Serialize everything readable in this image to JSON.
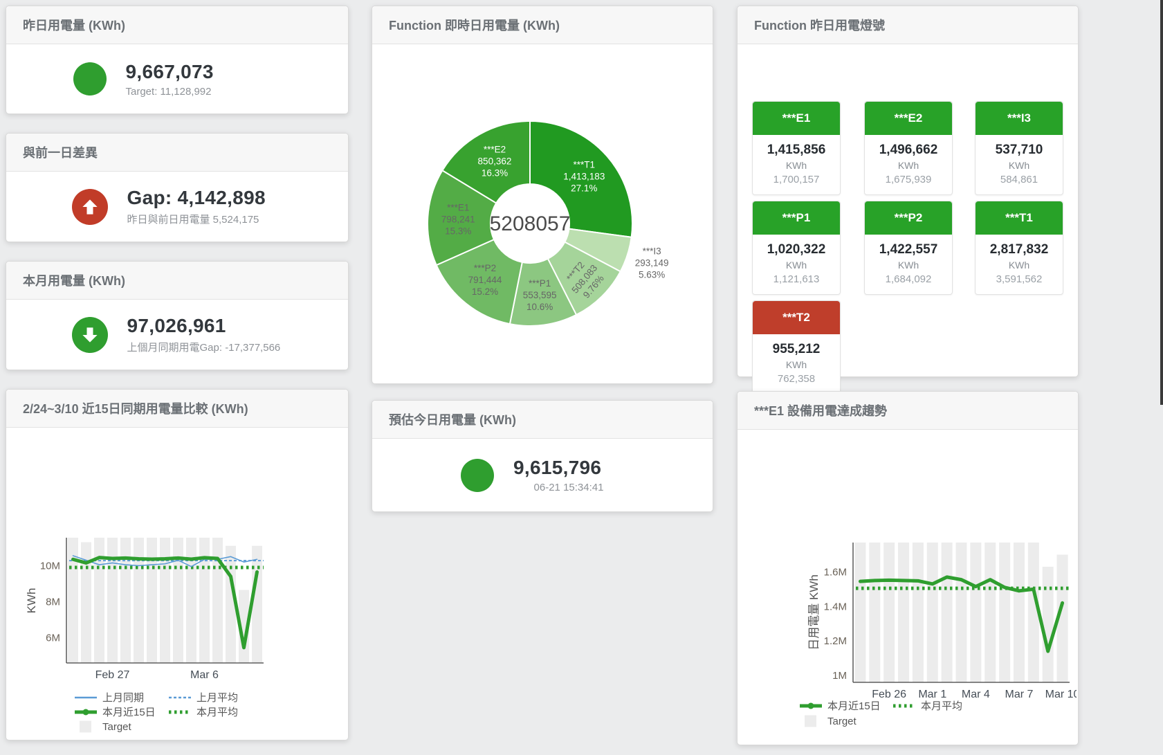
{
  "colors": {
    "green": "#2f9e2f",
    "red": "#c13c28",
    "tile_green": "#28a228",
    "tile_red": "#bf3e2b",
    "blue": "#5b9bd5",
    "target_gray": "#ececec"
  },
  "cards": {
    "yesterday": {
      "title": "昨日用電量 (KWh)",
      "value": "9,667,073",
      "subtitle": "Target: 11,128,992"
    },
    "gap": {
      "title": "與前一日差異",
      "value": "Gap: 4,142,898",
      "subtitle": "昨日與前日用電量 5,524,175"
    },
    "month": {
      "title": "本月用電量 (KWh)",
      "value": "97,026,961",
      "subtitle": "上個月同期用電Gap: -17,377,566"
    },
    "estimate": {
      "title": "預估今日用電量 (KWh)",
      "value": "9,615,796",
      "subtitle": "06-21 15:34:41"
    },
    "donut": {
      "title": "Function 即時日用電量 (KWh)"
    },
    "compare": {
      "title": "2/24~3/10 近15日同期用電量比較 (KWh)"
    },
    "lights": {
      "title": "Function 昨日用電燈號",
      "unit": "KWh",
      "tiles": [
        {
          "name": "***E1",
          "value": "1,415,856",
          "target": "1,700,157",
          "status": "green",
          "status_color": "#28a228"
        },
        {
          "name": "***E2",
          "value": "1,496,662",
          "target": "1,675,939",
          "status": "green",
          "status_color": "#28a228"
        },
        {
          "name": "***I3",
          "value": "537,710",
          "target": "584,861",
          "status": "green",
          "status_color": "#28a228"
        },
        {
          "name": "***P1",
          "value": "1,020,322",
          "target": "1,121,613",
          "status": "green",
          "status_color": "#28a228"
        },
        {
          "name": "***P2",
          "value": "1,422,557",
          "target": "1,684,092",
          "status": "green",
          "status_color": "#28a228"
        },
        {
          "name": "***T1",
          "value": "2,817,832",
          "target": "3,591,562",
          "status": "green",
          "status_color": "#28a228"
        },
        {
          "name": "***T2",
          "value": "955,212",
          "target": "762,358",
          "status": "red",
          "status_color": "#bf3e2b"
        }
      ]
    },
    "trend": {
      "title": "***E1 設備用電達成趨勢"
    }
  },
  "chart_data": [
    {
      "id": "donut",
      "type": "pie",
      "title": "Function 即時日用電量 (KWh)",
      "center_total": "5208057",
      "slices": [
        {
          "name": "***T1",
          "value": 1413183,
          "value_label": "1,413,183",
          "pct": "27.1%",
          "color": "#219a21",
          "label": "inside",
          "label_color": "#ffffff"
        },
        {
          "name": "***I3",
          "value": 293149,
          "value_label": "293,149",
          "pct": "5.63%",
          "color": "#bcdfb0",
          "label": "outside",
          "label_color": "#666666"
        },
        {
          "name": "***T2",
          "value": 508083,
          "value_label": "508,083",
          "pct": "9.76%",
          "color": "#a5d49a",
          "label": "inside-rotated",
          "label_color": "#666666"
        },
        {
          "name": "***P1",
          "value": 553595,
          "value_label": "553,595",
          "pct": "10.6%",
          "color": "#8cc781",
          "label": "inside",
          "label_color": "#666666"
        },
        {
          "name": "***P2",
          "value": 791444,
          "value_label": "791,444",
          "pct": "15.2%",
          "color": "#70ba64",
          "label": "inside",
          "label_color": "#666666"
        },
        {
          "name": "***E1",
          "value": 798241,
          "value_label": "798,241",
          "pct": "15.3%",
          "color": "#53ac46",
          "label": "inside",
          "label_color": "#666666"
        },
        {
          "name": "***E2",
          "value": 850362,
          "value_label": "850,362",
          "pct": "16.3%",
          "color": "#38a22f",
          "label": "inside",
          "label_color": "#ffffff"
        }
      ]
    },
    {
      "id": "compare",
      "type": "line",
      "title": "2/24~3/10 近15日同期用電量比較 (KWh)",
      "ylabel": "KWh",
      "values_unit": "millions of KWh",
      "ylim": [
        4.6,
        11.55
      ],
      "categories": [
        "2/24",
        "2/25",
        "2/26",
        "2/27",
        "2/28",
        "3/1",
        "3/2",
        "3/3",
        "3/4",
        "3/5",
        "3/6",
        "3/7",
        "3/8",
        "3/9",
        "3/10"
      ],
      "yticks": [
        {
          "v": 6,
          "label": "6M"
        },
        {
          "v": 8,
          "label": "8M"
        },
        {
          "v": 10,
          "label": "10M"
        }
      ],
      "xticks": [
        {
          "i": 3,
          "label": "Feb 27"
        },
        {
          "i": 10,
          "label": "Mar 6"
        }
      ],
      "series": [
        {
          "name": "Target",
          "type": "bar",
          "color": "#ececec",
          "values": [
            11.55,
            11.3,
            11.55,
            11.55,
            11.55,
            11.55,
            11.55,
            11.55,
            11.55,
            11.55,
            11.55,
            11.55,
            11.1,
            8.65,
            11.1
          ]
        },
        {
          "name": "上月同期",
          "type": "line",
          "width": 1.6,
          "color": "#5b9bd5",
          "values": [
            10.55,
            10.3,
            10.05,
            10.15,
            10.05,
            10.0,
            10.05,
            10.1,
            10.3,
            9.95,
            10.35,
            10.35,
            10.5,
            10.2,
            10.35
          ]
        },
        {
          "name": "上月平均",
          "type": "avg-dashed",
          "color": "#5b9bd5",
          "value": 10.28
        },
        {
          "name": "本月近15日",
          "type": "line",
          "width": 5,
          "color": "#2f9e2f",
          "values": [
            10.35,
            10.15,
            10.45,
            10.4,
            10.42,
            10.38,
            10.36,
            10.38,
            10.42,
            10.36,
            10.44,
            10.4,
            9.4,
            5.45,
            9.65
          ]
        },
        {
          "name": "本月平均",
          "type": "avg-dotted",
          "color": "#2f9e2f",
          "value": 9.9
        }
      ],
      "legend_position": "bottom"
    },
    {
      "id": "trend",
      "type": "line",
      "title": "***E1 設備用電達成趨勢",
      "ylabel": "日用電量 KWh",
      "values_unit": "millions of KWh",
      "ylim": [
        0.96,
        1.77
      ],
      "categories": [
        "2/24",
        "2/25",
        "2/26",
        "2/27",
        "2/28",
        "3/1",
        "3/2",
        "3/3",
        "3/4",
        "3/5",
        "3/6",
        "3/7",
        "3/8",
        "3/9",
        "3/10"
      ],
      "yticks": [
        {
          "v": 1,
          "label": "1M"
        },
        {
          "v": 1.2,
          "label": "1.2M"
        },
        {
          "v": 1.4,
          "label": "1.4M"
        },
        {
          "v": 1.6,
          "label": "1.6M"
        }
      ],
      "xticks": [
        {
          "i": 2,
          "label": "Feb 26"
        },
        {
          "i": 5,
          "label": "Mar 1"
        },
        {
          "i": 8,
          "label": "Mar 4"
        },
        {
          "i": 11,
          "label": "Mar 7"
        },
        {
          "i": 14,
          "label": "Mar 10"
        }
      ],
      "series": [
        {
          "name": "Target",
          "type": "bar",
          "color": "#ececec",
          "values": [
            1.77,
            1.77,
            1.77,
            1.77,
            1.77,
            1.77,
            1.77,
            1.77,
            1.77,
            1.77,
            1.77,
            1.77,
            1.77,
            1.63,
            1.7
          ]
        },
        {
          "name": "本月近15日",
          "type": "line",
          "width": 5,
          "color": "#2f9e2f",
          "values": [
            1.545,
            1.55,
            1.552,
            1.55,
            1.548,
            1.53,
            1.57,
            1.555,
            1.515,
            1.555,
            1.51,
            1.49,
            1.5,
            1.14,
            1.42
          ]
        },
        {
          "name": "本月平均",
          "type": "avg-dotted",
          "color": "#2f9e2f",
          "value": 1.505
        }
      ],
      "legend_position": "bottom"
    }
  ]
}
